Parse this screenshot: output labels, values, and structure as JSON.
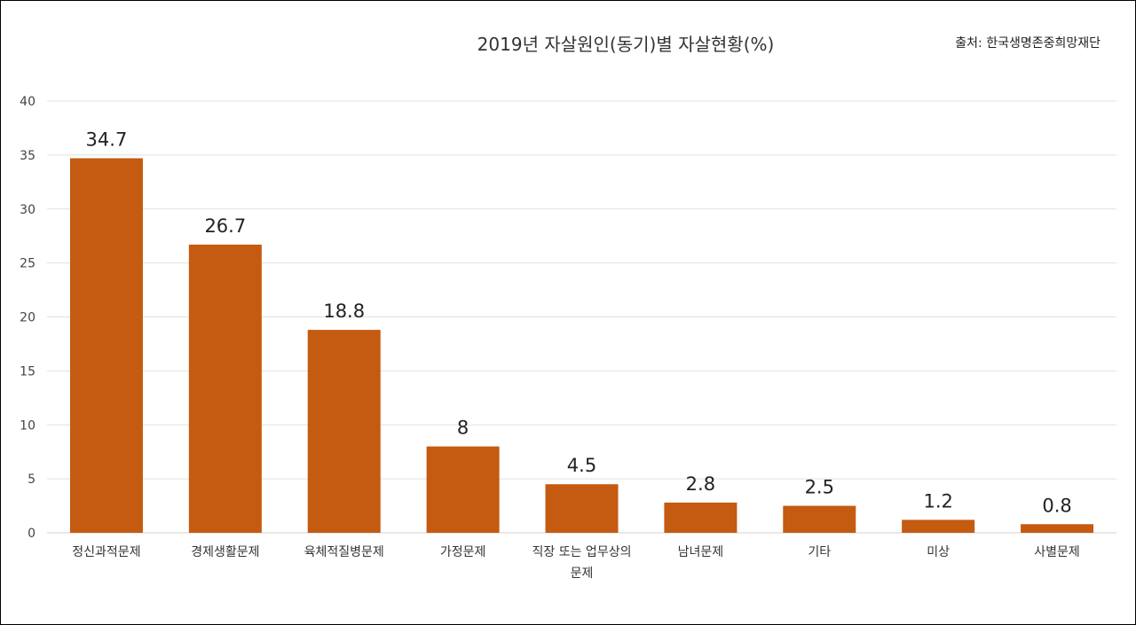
{
  "chart_data": {
    "type": "bar",
    "title": "2019년 자살원인(동기)별 자살현황(%)",
    "source": "출처: 한국생명존중희망재단",
    "categories": [
      "정신과적문제",
      "경제생활문제",
      "육체적질병문제",
      "가정문제",
      "직장 또는 업무상의 문제",
      "남녀문제",
      "기타",
      "미상",
      "사별문제"
    ],
    "category_lines": [
      [
        "정신과적문제"
      ],
      [
        "경제생활문제"
      ],
      [
        "육체적질병문제"
      ],
      [
        "가정문제"
      ],
      [
        "직장 또는 업무상의",
        "문제"
      ],
      [
        "남녀문제"
      ],
      [
        "기타"
      ],
      [
        "미상"
      ],
      [
        "사별문제"
      ]
    ],
    "values": [
      34.7,
      26.7,
      18.8,
      8,
      4.5,
      2.8,
      2.5,
      1.2,
      0.8
    ],
    "data_labels": [
      "34.7",
      "26.7",
      "18.8",
      "8",
      "4.5",
      "2.8",
      "2.5",
      "1.2",
      "0.8"
    ],
    "yticks": [
      0,
      5,
      10,
      15,
      20,
      25,
      30,
      35,
      40
    ],
    "ylim": [
      0,
      40
    ],
    "xlabel": "",
    "ylabel": "",
    "grid": true,
    "legend": "none",
    "bar_color": "#C55A11"
  }
}
